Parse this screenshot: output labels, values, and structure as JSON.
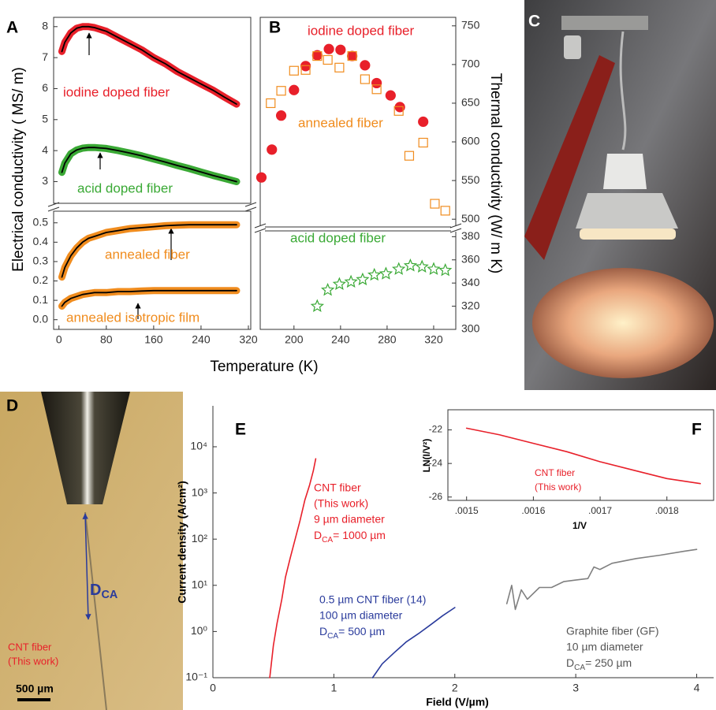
{
  "chart_data": [
    {
      "panel": "A",
      "type": "line",
      "ylabel": "Electrical conductivity ( MS/ m)",
      "xlim": [
        -9,
        324
      ],
      "ylim": [
        2.3,
        8.3
      ],
      "yticks": [
        3,
        4,
        5,
        6,
        7,
        8
      ],
      "fit_color": "#000000",
      "x": [
        5,
        10,
        20,
        30,
        40,
        50,
        60,
        80,
        100,
        120,
        140,
        160,
        180,
        200,
        220,
        240,
        260,
        280,
        300
      ],
      "series": [
        {
          "name": "iodine doped fiber",
          "color": "#e8202a",
          "values": [
            7.2,
            7.5,
            7.8,
            7.95,
            8.0,
            8.0,
            7.97,
            7.85,
            7.65,
            7.45,
            7.25,
            7.0,
            6.8,
            6.55,
            6.35,
            6.15,
            5.95,
            5.72,
            5.5
          ]
        },
        {
          "name": "acid doped fiber",
          "color": "#3aa935",
          "values": [
            3.3,
            3.6,
            3.9,
            4.02,
            4.08,
            4.1,
            4.1,
            4.07,
            4.0,
            3.92,
            3.83,
            3.73,
            3.63,
            3.52,
            3.42,
            3.31,
            3.2,
            3.1,
            3.0
          ]
        }
      ]
    },
    {
      "type": "line",
      "xlabel": "Temperature (K)",
      "xlim": [
        -9,
        324
      ],
      "ylim": [
        -0.05,
        0.56
      ],
      "xticks": [
        0,
        80,
        160,
        240,
        320
      ],
      "yticks": [
        {
          "value": 0,
          "label": "0.0"
        },
        0.1,
        0.2,
        0.3,
        0.4,
        0.5
      ],
      "fit_color": "#000000",
      "x": [
        5,
        10,
        20,
        30,
        40,
        50,
        60,
        80,
        100,
        120,
        140,
        160,
        180,
        200,
        220,
        240,
        260,
        280,
        300
      ],
      "series": [
        {
          "name": "annealed fiber",
          "color": "#f08c1e",
          "values": [
            0.22,
            0.27,
            0.33,
            0.37,
            0.4,
            0.42,
            0.43,
            0.45,
            0.46,
            0.47,
            0.475,
            0.48,
            0.485,
            0.488,
            0.49,
            0.49,
            0.49,
            0.49,
            0.49
          ]
        },
        {
          "name": "annealed isotropic film",
          "color": "#f08c1e",
          "values": [
            0.07,
            0.09,
            0.11,
            0.12,
            0.13,
            0.135,
            0.14,
            0.14,
            0.145,
            0.145,
            0.148,
            0.15,
            0.15,
            0.15,
            0.15,
            0.15,
            0.15,
            0.15,
            0.15
          ]
        }
      ]
    },
    {
      "panel": "B",
      "type": "scatter",
      "ylabel": "Thermal conductivity (W/ m K)",
      "xlim": [
        171,
        339
      ],
      "ylim": [
        490,
        761
      ],
      "yticks": [
        500,
        550,
        600,
        650,
        700,
        750
      ],
      "series": [
        {
          "name": "iodine doped fiber",
          "color": "#e8202a",
          "marker": "circle",
          "filled": true,
          "x": [
            172,
            181,
            189,
            200,
            210,
            220,
            230,
            240,
            250,
            261,
            271,
            283,
            291,
            311
          ],
          "values": [
            554,
            590,
            634,
            667,
            698,
            712,
            720,
            719,
            711,
            699,
            676,
            660,
            645,
            626
          ]
        },
        {
          "name": "annealed fiber",
          "color": "#f08c1e",
          "marker": "square",
          "filled": false,
          "x": [
            180,
            189,
            200,
            210,
            220,
            229,
            239,
            250,
            261,
            271,
            290,
            299,
            311,
            321,
            330
          ],
          "values": [
            650,
            666,
            692,
            693,
            711,
            706,
            696,
            711,
            681,
            668,
            640,
            582,
            599,
            520,
            511
          ]
        }
      ]
    },
    {
      "type": "scatter",
      "xlim": [
        171,
        339
      ],
      "ylim": [
        300,
        385
      ],
      "xticks": [
        200,
        240,
        280,
        320
      ],
      "yticks": [
        300,
        320,
        340,
        360,
        380
      ],
      "series": [
        {
          "name": "acid doped fiber",
          "color": "#3aa935",
          "marker": "star",
          "filled": false,
          "x": [
            220,
            229,
            239,
            249,
            259,
            269,
            279,
            290,
            300,
            310,
            320,
            330
          ],
          "values": [
            320,
            334,
            339,
            341,
            343,
            347,
            348,
            352,
            355,
            354,
            352,
            351
          ]
        }
      ]
    },
    {
      "panel": "E",
      "type": "line",
      "log_y": true,
      "xlabel": "Field (V/µm)",
      "ylabel": "Current density (A/cm²)",
      "xlim": [
        0,
        4.14
      ],
      "ylim": [
        0.1,
        77000
      ],
      "xticks": [
        0,
        1,
        2,
        3,
        4
      ],
      "yticks": [
        {
          "value": 0.1,
          "label": "10⁻¹"
        },
        {
          "value": 1,
          "label": "10⁰"
        },
        {
          "value": 10,
          "label": "10¹"
        },
        {
          "value": 100,
          "label": "10²"
        },
        {
          "value": 1000,
          "label": "10³"
        },
        {
          "value": 10000,
          "label": "10⁴"
        }
      ],
      "series": [
        {
          "color": "#e8202a",
          "x": [
            0.47,
            0.5,
            0.53,
            0.57,
            0.6,
            0.64,
            0.68,
            0.72,
            0.76,
            0.8,
            0.83,
            0.85
          ],
          "values": [
            0.1,
            0.5,
            1.5,
            5,
            15,
            40,
            100,
            250,
            700,
            1500,
            3000,
            5500
          ]
        },
        {
          "color": "#2a3b9c",
          "x": [
            1.32,
            1.4,
            1.5,
            1.6,
            1.7,
            1.8,
            1.9,
            2.0
          ],
          "values": [
            0.1,
            0.2,
            0.35,
            0.6,
            0.9,
            1.4,
            2.2,
            3.3
          ]
        },
        {
          "color": "#808080",
          "x": [
            2.43,
            2.47,
            2.5,
            2.55,
            2.6,
            2.7,
            2.8,
            2.9,
            3.0,
            3.1,
            3.15,
            3.2,
            3.3,
            3.5,
            3.7,
            3.9,
            4.0
          ],
          "values": [
            4,
            10,
            3,
            8,
            5,
            9,
            9,
            12,
            13,
            14,
            25,
            22,
            30,
            38,
            45,
            55,
            60
          ]
        }
      ],
      "annotations": [
        {
          "color": "#e8202a",
          "lines": [
            "CNT fiber",
            "(This work)",
            "9 µm diameter",
            {
              "text": "D",
              "sub": "CA",
              "rest": "= 1000 µm"
            }
          ]
        },
        {
          "color": "#2a3b9c",
          "lines": [
            "0.5 µm CNT fiber (14)",
            "100 µm diameter",
            {
              "text": "D",
              "sub": "CA",
              "rest": "= 500 µm"
            }
          ]
        },
        {
          "color": "#555555",
          "lines": [
            "Graphite fiber (GF)",
            "10 µm diameter",
            {
              "text": "D",
              "sub": "CA",
              "rest": "= 250 µm"
            }
          ]
        }
      ]
    },
    {
      "panel": "F",
      "type": "line",
      "xlabel": "1/V",
      "ylabel": "LN(I/V²)",
      "xlim": [
        0.001472,
        0.00187
      ],
      "ylim": [
        -26.2,
        -20.8
      ],
      "xticks": [
        {
          "value": 0.0015,
          "label": ".0015"
        },
        {
          "value": 0.0016,
          "label": ".0016"
        },
        {
          "value": 0.0017,
          "label": ".0017"
        },
        {
          "value": 0.0018,
          "label": ".0018"
        }
      ],
      "yticks": [
        -22,
        -24,
        -26
      ],
      "series": [
        {
          "color": "#e8202a",
          "x": [
            0.0015,
            0.00155,
            0.0016,
            0.00165,
            0.0017,
            0.00175,
            0.0018,
            0.00185
          ],
          "values": [
            -21.9,
            -22.3,
            -22.8,
            -23.3,
            -23.9,
            -24.4,
            -24.9,
            -25.2
          ]
        }
      ],
      "annotations": [
        {
          "color": "#e8202a",
          "lines": [
            "CNT fiber",
            "(This work)"
          ]
        }
      ]
    }
  ],
  "photos": [
    {
      "panel": "C"
    },
    {
      "panel": "D",
      "dimension": {
        "text": "D",
        "sub": "CA"
      },
      "fiber_label": [
        "CNT fiber",
        "(This work)"
      ],
      "scale_bar": "500 µm"
    }
  ]
}
